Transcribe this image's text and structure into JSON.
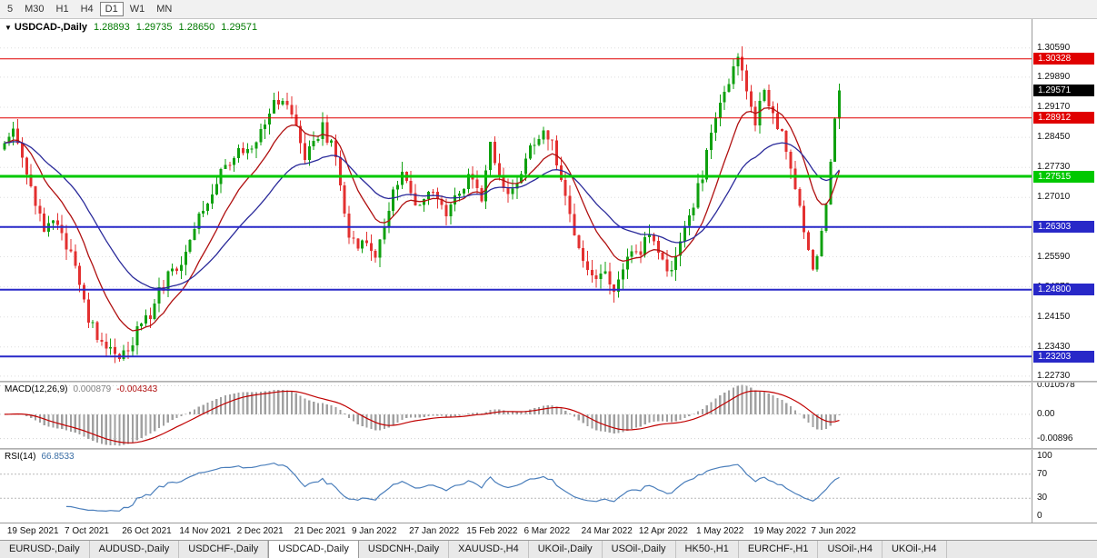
{
  "toolbar": {
    "timeframes": [
      {
        "label": "5",
        "active": false
      },
      {
        "label": "M30",
        "active": false
      },
      {
        "label": "H1",
        "active": false
      },
      {
        "label": "H4",
        "active": false
      },
      {
        "label": "D1",
        "active": true
      },
      {
        "label": "W1",
        "active": false
      },
      {
        "label": "MN",
        "active": false
      }
    ]
  },
  "chart": {
    "menu_icon": "▼",
    "symbol_title": "USDCAD-,Daily",
    "ohlc_text": {
      "open": "1.28893",
      "high": "1.29735",
      "low": "1.28650",
      "close": "1.29571"
    },
    "domain": {
      "min": 1.2262,
      "max": 1.3128
    },
    "colors": {
      "up": "#0FA00F",
      "down": "#E33030",
      "ma_fast": "#B01010",
      "ma_slow": "#2A2A9A",
      "grid": "#DEDEDE",
      "current_tag_bg": "#000000"
    },
    "price_axis": {
      "labels": [
        {
          "text": "1.30590",
          "price": 1.3059
        },
        {
          "text": "1.29890",
          "price": 1.2989
        },
        {
          "text": "1.29170",
          "price": 1.2917
        },
        {
          "text": "1.28450",
          "price": 1.2845
        },
        {
          "text": "1.27730",
          "price": 1.2773
        },
        {
          "text": "1.27010",
          "price": 1.2701
        },
        {
          "text": "1.26290",
          "price": 1.2629
        },
        {
          "text": "1.25590",
          "price": 1.2559
        },
        {
          "text": "1.24870",
          "price": 1.2487
        },
        {
          "text": "1.24150",
          "price": 1.2415
        },
        {
          "text": "1.23430",
          "price": 1.2343
        },
        {
          "text": "1.22730",
          "price": 1.2273
        }
      ]
    },
    "levels": [
      {
        "label": "1.30328",
        "price": 1.30328,
        "color": "#E00000",
        "thickness": 1
      },
      {
        "label": "1.28912",
        "price": 1.28912,
        "color": "#E00000",
        "thickness": 1
      },
      {
        "label": "1.27515",
        "price": 1.27515,
        "color": "#00C800",
        "thickness": 3
      },
      {
        "label": "1.26303",
        "price": 1.26303,
        "color": "#2828C8",
        "thickness": 2
      },
      {
        "label": "1.24800",
        "price": 1.248,
        "color": "#2828C8",
        "thickness": 2
      },
      {
        "label": "1.23203",
        "price": 1.23203,
        "color": "#2828C8",
        "thickness": 2
      }
    ],
    "current_price": {
      "label": "1.29571",
      "price": 1.29571
    },
    "candles": {
      "count": 190,
      "close_anchors": [
        [
          0,
          1.2825
        ],
        [
          2,
          1.2858
        ],
        [
          4,
          1.279
        ],
        [
          7,
          1.2685
        ],
        [
          9,
          1.2635
        ],
        [
          11,
          1.266
        ],
        [
          13,
          1.2618
        ],
        [
          15,
          1.256
        ],
        [
          17,
          1.248
        ],
        [
          19,
          1.241
        ],
        [
          21,
          1.237
        ],
        [
          23,
          1.2335
        ],
        [
          26,
          1.2312
        ],
        [
          28,
          1.234
        ],
        [
          30,
          1.2385
        ],
        [
          33,
          1.242
        ],
        [
          35,
          1.2475
        ],
        [
          38,
          1.2525
        ],
        [
          40,
          1.2555
        ],
        [
          43,
          1.2635
        ],
        [
          46,
          1.27
        ],
        [
          49,
          1.2758
        ],
        [
          51,
          1.2795
        ],
        [
          53,
          1.2828
        ],
        [
          55,
          1.28
        ],
        [
          57,
          1.2845
        ],
        [
          60,
          1.2905
        ],
        [
          62,
          1.293
        ],
        [
          64,
          1.2908
        ],
        [
          66,
          1.2872
        ],
        [
          68,
          1.28
        ],
        [
          70,
          1.2835
        ],
        [
          72,
          1.2868
        ],
        [
          74,
          1.283
        ],
        [
          76,
          1.2735
        ],
        [
          78,
          1.262
        ],
        [
          80,
          1.257
        ],
        [
          82,
          1.2605
        ],
        [
          84,
          1.2565
        ],
        [
          86,
          1.2618
        ],
        [
          88,
          1.2715
        ],
        [
          90,
          1.2758
        ],
        [
          92,
          1.2712
        ],
        [
          94,
          1.268
        ],
        [
          96,
          1.2718
        ],
        [
          98,
          1.27
        ],
        [
          100,
          1.2662
        ],
        [
          102,
          1.27
        ],
        [
          104,
          1.2728
        ],
        [
          106,
          1.2758
        ],
        [
          108,
          1.2705
        ],
        [
          110,
          1.2818
        ],
        [
          112,
          1.2762
        ],
        [
          114,
          1.2705
        ],
        [
          116,
          1.2742
        ],
        [
          118,
          1.2788
        ],
        [
          120,
          1.283
        ],
        [
          122,
          1.2858
        ],
        [
          124,
          1.2838
        ],
        [
          126,
          1.2742
        ],
        [
          128,
          1.2652
        ],
        [
          130,
          1.2582
        ],
        [
          132,
          1.252
        ],
        [
          134,
          1.2492
        ],
        [
          136,
          1.2512
        ],
        [
          138,
          1.2482
        ],
        [
          140,
          1.2528
        ],
        [
          142,
          1.2558
        ],
        [
          144,
          1.2578
        ],
        [
          146,
          1.2618
        ],
        [
          148,
          1.2562
        ],
        [
          150,
          1.2512
        ],
        [
          152,
          1.2568
        ],
        [
          154,
          1.2618
        ],
        [
          156,
          1.2688
        ],
        [
          158,
          1.2758
        ],
        [
          160,
          1.2848
        ],
        [
          162,
          1.2918
        ],
        [
          164,
          1.2988
        ],
        [
          166,
          1.3032
        ],
        [
          167,
          1.3002
        ],
        [
          168,
          1.2952
        ],
        [
          169,
          1.2902
        ],
        [
          170,
          1.2872
        ],
        [
          171,
          1.2928
        ],
        [
          172,
          1.2948
        ],
        [
          174,
          1.2898
        ],
        [
          176,
          1.2858
        ],
        [
          178,
          1.2758
        ],
        [
          180,
          1.2678
        ],
        [
          182,
          1.2572
        ],
        [
          183,
          1.2532
        ],
        [
          184,
          1.2558
        ],
        [
          185,
          1.2618
        ],
        [
          186,
          1.2688
        ],
        [
          187,
          1.2788
        ],
        [
          188,
          1.2889
        ],
        [
          189,
          1.29571
        ]
      ]
    }
  },
  "macd": {
    "name": "MACD(12,26,9)",
    "main_value": "0.000879",
    "signal_value": "-0.004343",
    "params": {
      "fast": 12,
      "slow": 26,
      "signal": 9
    },
    "axis_labels": [
      {
        "text": "0.010578",
        "value": 0.010578
      },
      {
        "text": "0.00",
        "value": 0
      },
      {
        "text": "-0.00896",
        "value": -0.00896
      }
    ],
    "colors": {
      "histogram": "#A0A0A0",
      "signal": "#C00000"
    }
  },
  "rsi": {
    "name": "RSI(14)",
    "value": "66.8533",
    "period": 14,
    "color": "#4A7EBB",
    "axis_labels": [
      {
        "text": "100",
        "value": 100
      },
      {
        "text": "70",
        "value": 70
      },
      {
        "text": "30",
        "value": 30
      },
      {
        "text": "0",
        "value": 0
      }
    ],
    "levels": [
      70,
      30
    ]
  },
  "time_axis": {
    "labels": [
      {
        "text": "19 Sep 2021",
        "candle": 1
      },
      {
        "text": "7 Oct 2021",
        "candle": 14
      },
      {
        "text": "26 Oct 2021",
        "candle": 27
      },
      {
        "text": "14 Nov 2021",
        "candle": 40
      },
      {
        "text": "2 Dec 2021",
        "candle": 53
      },
      {
        "text": "21 Dec 2021",
        "candle": 66
      },
      {
        "text": "9 Jan 2022",
        "candle": 79
      },
      {
        "text": "27 Jan 2022",
        "candle": 92
      },
      {
        "text": "15 Feb 2022",
        "candle": 105
      },
      {
        "text": "6 Mar 2022",
        "candle": 118
      },
      {
        "text": "24 Mar 2022",
        "candle": 131
      },
      {
        "text": "12 Apr 2022",
        "candle": 144
      },
      {
        "text": "1 May 2022",
        "candle": 157
      },
      {
        "text": "19 May 2022",
        "candle": 170
      },
      {
        "text": "7 Jun 2022",
        "candle": 183
      }
    ]
  },
  "tabs": {
    "active_index": 3,
    "items": [
      {
        "label": "EURUSD-,Daily"
      },
      {
        "label": "AUDUSD-,Daily"
      },
      {
        "label": "USDCHF-,Daily"
      },
      {
        "label": "USDCAD-,Daily"
      },
      {
        "label": "USDCNH-,Daily"
      },
      {
        "label": "XAUUSD-,H4"
      },
      {
        "label": "UKOil-,Daily"
      },
      {
        "label": "USOil-,Daily"
      },
      {
        "label": "HK50-,H1"
      },
      {
        "label": "EURCHF-,H1"
      },
      {
        "label": "USOil-,H4"
      },
      {
        "label": "UKOil-,H4"
      }
    ]
  }
}
